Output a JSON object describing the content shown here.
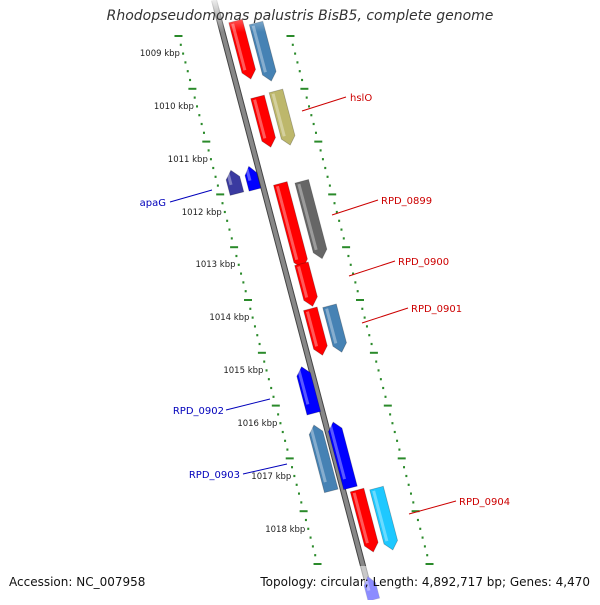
{
  "title": "Rhodopseudomonas palustris BisB5, complete genome",
  "footer": {
    "accession": "Accession: NC_007958",
    "summary": "Topology: circular; Length: 4,892,717 bp; Genes: 4,470"
  },
  "colors": {
    "backbone": "#888888",
    "tick_dot": "#2a8a2a",
    "forward_label": "#cc0000",
    "reverse_label": "#0000bb"
  },
  "scale": {
    "labels": [
      "1009 kbp",
      "1010 kbp",
      "1011 kbp",
      "1012 kbp",
      "1013 kbp",
      "1014 kbp",
      "1015 kbp",
      "1016 kbp",
      "1017 kbp",
      "1018 kbp"
    ]
  },
  "genes": [
    {
      "strand": "+",
      "color": "#ff0000",
      "label": ""
    },
    {
      "strand": "+",
      "color": "#4682b4",
      "label": ""
    },
    {
      "strand": "+",
      "color": "#ff0000",
      "label": "hslO"
    },
    {
      "strand": "+",
      "color": "#bdb76b",
      "label": ""
    },
    {
      "strand": "-",
      "color": "#3a3aa0",
      "label": "apaG"
    },
    {
      "strand": "-",
      "color": "#0000ff",
      "label": ""
    },
    {
      "strand": "+",
      "color": "#ff0000",
      "label": ""
    },
    {
      "strand": "+",
      "color": "#666666",
      "label": "RPD_0899"
    },
    {
      "strand": "+",
      "color": "#ff0000",
      "label": "RPD_0900"
    },
    {
      "strand": "+",
      "color": "#ff0000",
      "label": "RPD_0901"
    },
    {
      "strand": "+",
      "color": "#4682b4",
      "label": ""
    },
    {
      "strand": "-",
      "color": "#0000ff",
      "label": "RPD_0902"
    },
    {
      "strand": "-",
      "color": "#4682b4",
      "label": "RPD_0903"
    },
    {
      "strand": "-",
      "color": "#0000ff",
      "label": ""
    },
    {
      "strand": "+",
      "color": "#ff0000",
      "label": ""
    },
    {
      "strand": "+",
      "color": "#1ec8ff",
      "label": "RPD_0904"
    },
    {
      "strand": "-",
      "color": "#0000ff",
      "label": ""
    }
  ]
}
